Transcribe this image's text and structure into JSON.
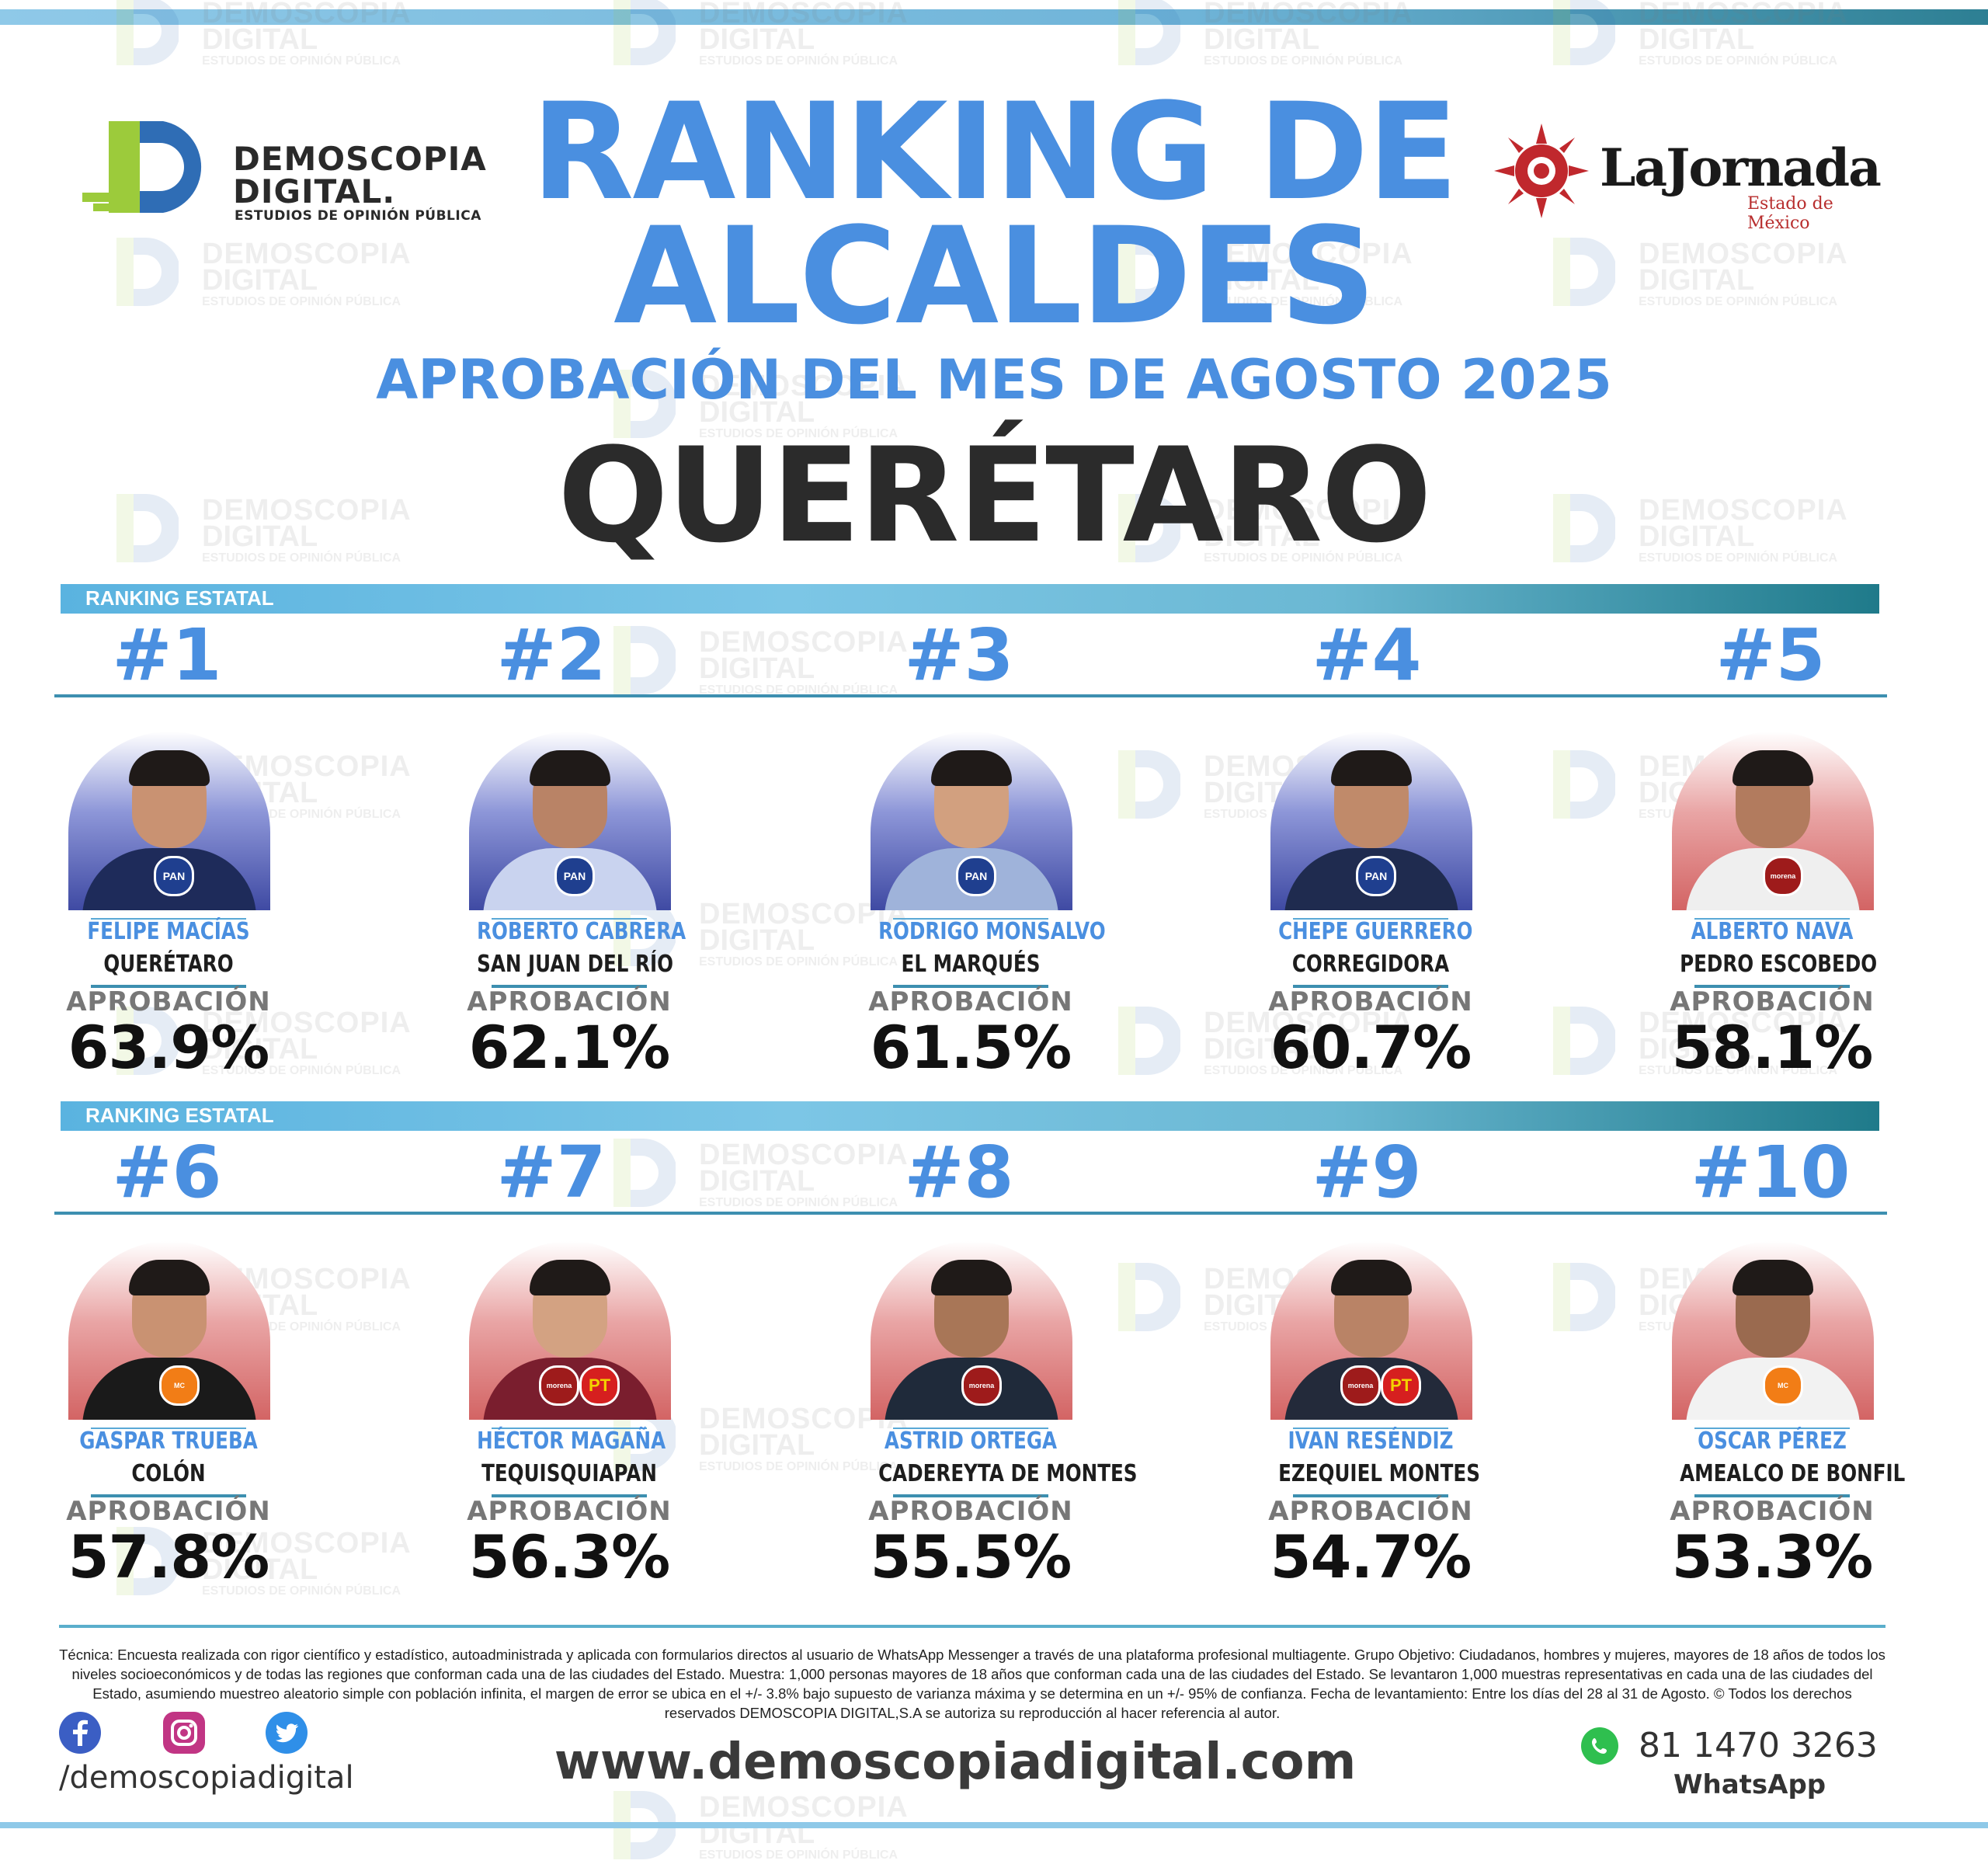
{
  "header": {
    "logo_left": {
      "line1": "DEMOSCOPIA",
      "line2": "DIGITAL.",
      "line3": "ESTUDIOS DE OPINIÓN PÚBLICA",
      "icon": "demoscopia-d-icon"
    },
    "title_line1": "RANKING DE",
    "title_line2": "ALCALDES",
    "subtitle": "APROBACIÓN DEL MES DE AGOSTO 2025",
    "state": "QUERÉTARO",
    "logo_right": {
      "name": "LaJornada",
      "sub": "Estado de México",
      "icon": "sun-icon"
    }
  },
  "strips": [
    "RANKING ESTATAL",
    "RANKING ESTATAL"
  ],
  "label": "APROBACIÓN",
  "row1": [
    {
      "rank": "#1",
      "name": "FELIPE MACÍAS",
      "city": "QUERÉTARO",
      "pct": "63.9%",
      "party": [
        "PAN"
      ],
      "theme": "blue"
    },
    {
      "rank": "#2",
      "name": "ROBERTO CABRERA",
      "city": "SAN JUAN DEL RÍO",
      "pct": "62.1%",
      "party": [
        "PAN"
      ],
      "theme": "blue"
    },
    {
      "rank": "#3",
      "name": "RODRIGO MONSALVO",
      "city": "EL MARQUÉS",
      "pct": "61.5%",
      "party": [
        "PAN"
      ],
      "theme": "blue"
    },
    {
      "rank": "#4",
      "name": "CHEPE GUERRERO",
      "city": "CORREGIDORA",
      "pct": "60.7%",
      "party": [
        "PAN"
      ],
      "theme": "blue"
    },
    {
      "rank": "#5",
      "name": "ALBERTO NAVA",
      "city": "PEDRO ESCOBEDO",
      "pct": "58.1%",
      "party": [
        "morena"
      ],
      "theme": "red"
    }
  ],
  "row2": [
    {
      "rank": "#6",
      "name": "GASPAR TRUEBA",
      "city": "COLÓN",
      "pct": "57.8%",
      "party": [
        "MC"
      ],
      "theme": "red"
    },
    {
      "rank": "#7",
      "name": "HÉCTOR MAGAÑA",
      "city": "TEQUISQUIAPAN",
      "pct": "56.3%",
      "party": [
        "morena",
        "PT"
      ],
      "theme": "red"
    },
    {
      "rank": "#8",
      "name": "ASTRID ORTEGA",
      "city": "CADEREYTA DE MONTES",
      "pct": "55.5%",
      "party": [
        "morena"
      ],
      "theme": "red"
    },
    {
      "rank": "#9",
      "name": "IVAN RESÉNDIZ",
      "city": "EZEQUIEL MONTES",
      "pct": "54.7%",
      "party": [
        "morena",
        "PT"
      ],
      "theme": "red"
    },
    {
      "rank": "#10",
      "name": "OSCAR PÉREZ",
      "city": "AMEALCO DE BONFIL",
      "pct": "53.3%",
      "party": [
        "MC"
      ],
      "theme": "red"
    }
  ],
  "watermark": {
    "line1": "DEMOSCOPIA",
    "line2": "DIGITAL",
    "line3": "ESTUDIOS DE OPINIÓN PÚBLICA"
  },
  "footer": {
    "technical_note": "Técnica: Encuesta realizada con rigor científico y estadístico, autoadministrada y aplicada con formularios directos al usuario de WhatsApp Messenger a través de una plataforma profesional multiagente. Grupo Objetivo: Ciudadanos, hombres y mujeres, mayores de 18 años de todos los niveles socioeconómicos y de todas las regiones que conforman cada una de las ciudades del Estado. Muestra: 1,000 personas mayores de 18 años que conforman cada una de las ciudades del Estado. Se levantaron 1,000 muestras representativas en cada una de las ciudades del Estado, asumiendo muestreo aleatorio simple con población infinita, el margen de error se ubica en el +/- 3.8% bajo supuesto de varianza máxima y se determina en un +/- 95% de confianza. Fecha de levantamiento: Entre los días del 28 al 31 de Agosto. © Todos los derechos reservados DEMOSCOPIA DIGITAL,S.A se autoriza su reproducción al hacer referencia al autor.",
    "social_icons": [
      "facebook-icon",
      "instagram-icon",
      "twitter-icon"
    ],
    "handle": "/demoscopiadigital",
    "website": "www.demoscopiadigital.com",
    "phone": "81 1470 3263",
    "whatsapp": "WhatsApp"
  },
  "colors": {
    "accent_blue": "#4a8fe0",
    "strip_teal": "#1f7a8a",
    "pan_blue": "#1f3f8f",
    "morena_red": "#9e1b1b",
    "pt_red": "#d61f1f",
    "mc_orange": "#f27d16"
  }
}
